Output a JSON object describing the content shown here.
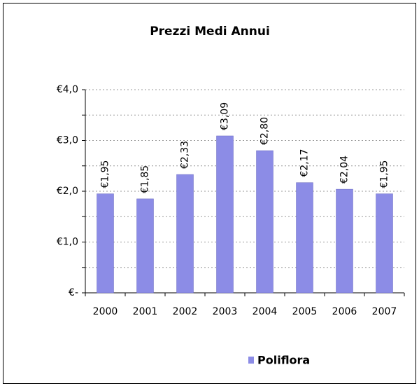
{
  "chart_data": {
    "type": "bar",
    "title": "Prezzi Medi Annui",
    "categories": [
      "2000",
      "2001",
      "2002",
      "2003",
      "2004",
      "2005",
      "2006",
      "2007"
    ],
    "series": [
      {
        "name": "Poliflora",
        "color": "#8c8ce6",
        "values": [
          1.95,
          1.85,
          2.33,
          3.09,
          2.8,
          2.17,
          2.04,
          1.95
        ],
        "value_labels": [
          "€1,95",
          "€1,85",
          "€2,33",
          "€3,09",
          "€2,80",
          "€2,17",
          "€2,04",
          "€1,95"
        ]
      }
    ],
    "ylim": [
      0,
      4
    ],
    "yticks": [
      {
        "value": 0,
        "label": "€-"
      },
      {
        "value": 1,
        "label": "€1,0"
      },
      {
        "value": 2,
        "label": "€2,0"
      },
      {
        "value": 3,
        "label": "€3,0"
      },
      {
        "value": 4,
        "label": "€4,0"
      }
    ],
    "minor_yticks": [
      0.5,
      1.5,
      2.5,
      3.5
    ],
    "grid": true,
    "legend": "bottom"
  }
}
